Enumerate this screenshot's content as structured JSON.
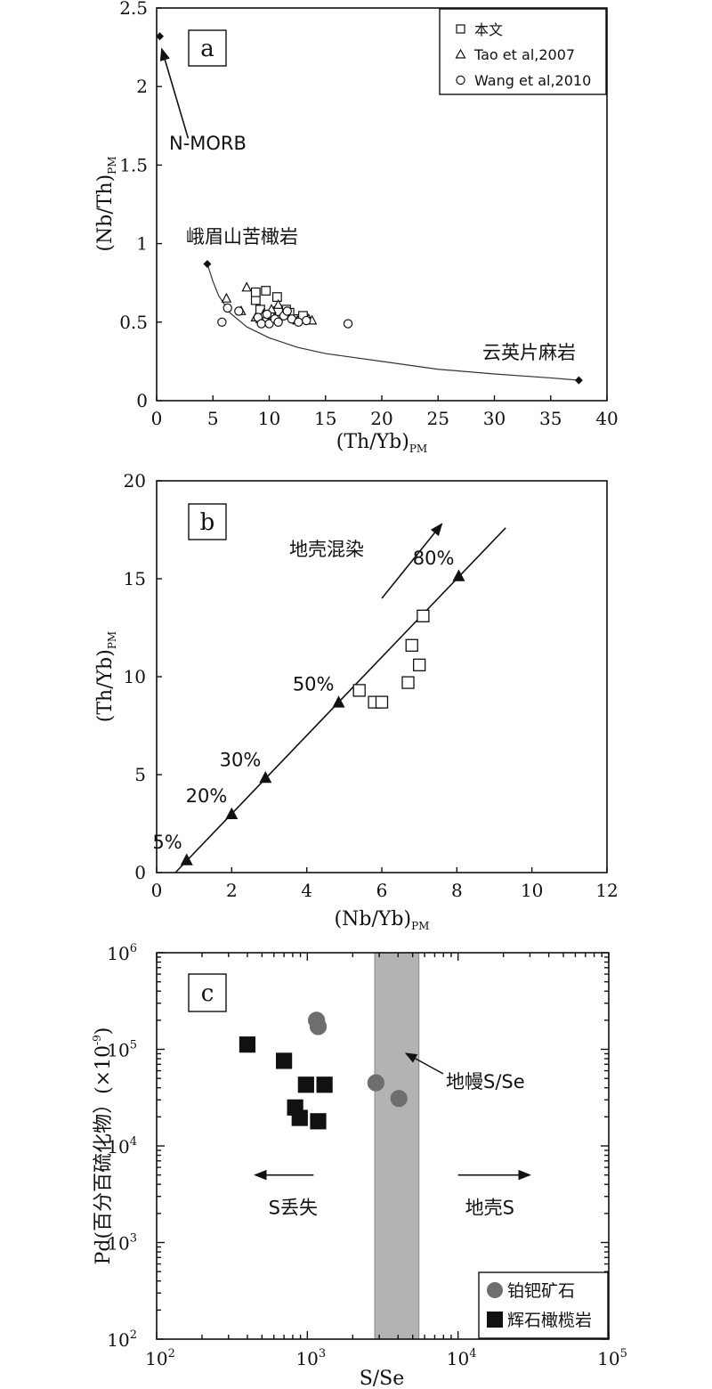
{
  "chart_data": [
    {
      "id": "a",
      "type": "scatter",
      "panel_label": "a",
      "xlabel": "(Th/Yb)",
      "xlabel_sub": "PM",
      "ylabel": "(Nb/Th)",
      "ylabel_sub": "PM",
      "xlim": [
        0,
        40
      ],
      "ylim": [
        0,
        2.5
      ],
      "xticks": [
        0,
        5,
        10,
        15,
        20,
        25,
        30,
        35,
        40
      ],
      "yticks": [
        0,
        0.5,
        1,
        1.5,
        2,
        2.5
      ],
      "ytick_labels": [
        "0",
        "0.5",
        "1",
        "1.5",
        "2",
        "2.5"
      ],
      "legend_position": "top-right",
      "legend": [
        {
          "marker": "square",
          "label": "本文"
        },
        {
          "marker": "triangle",
          "label": "Tao et al,2007"
        },
        {
          "marker": "circle",
          "label": "Wang et al,2010"
        }
      ],
      "series": [
        {
          "name": "本文",
          "marker": "square",
          "points": [
            [
              8.8,
              0.64
            ],
            [
              8.8,
              0.69
            ],
            [
              9.7,
              0.7
            ],
            [
              10.7,
              0.66
            ],
            [
              9.2,
              0.58
            ],
            [
              10.3,
              0.55
            ],
            [
              11.5,
              0.58
            ],
            [
              12.5,
              0.52
            ],
            [
              13.0,
              0.54
            ],
            [
              9.5,
              0.52
            ],
            [
              10.8,
              0.57
            ],
            [
              11.8,
              0.56
            ]
          ]
        },
        {
          "name": "Tao et al,2007",
          "marker": "triangle",
          "points": [
            [
              6.2,
              0.65
            ],
            [
              7.5,
              0.57
            ],
            [
              8.0,
              0.72
            ],
            [
              8.8,
              0.53
            ],
            [
              9.5,
              0.55
            ],
            [
              10.2,
              0.58
            ],
            [
              10.8,
              0.61
            ],
            [
              11.5,
              0.55
            ],
            [
              12.5,
              0.51
            ],
            [
              13.5,
              0.52
            ],
            [
              13.8,
              0.51
            ],
            [
              9.2,
              0.52
            ],
            [
              10.5,
              0.53
            ]
          ]
        },
        {
          "name": "Wang et al,2010",
          "marker": "circle",
          "points": [
            [
              5.8,
              0.5
            ],
            [
              6.3,
              0.59
            ],
            [
              7.3,
              0.57
            ],
            [
              9.0,
              0.53
            ],
            [
              9.3,
              0.49
            ],
            [
              9.8,
              0.55
            ],
            [
              10.0,
              0.49
            ],
            [
              10.5,
              0.52
            ],
            [
              10.8,
              0.5
            ],
            [
              11.3,
              0.54
            ],
            [
              11.6,
              0.57
            ],
            [
              12.0,
              0.52
            ],
            [
              12.6,
              0.5
            ],
            [
              13.3,
              0.51
            ],
            [
              17.0,
              0.49
            ]
          ]
        }
      ],
      "endmembers": [
        {
          "label": "N-MORB",
          "x": 0.28,
          "y": 2.32
        },
        {
          "label": "峨眉山苦橄岩",
          "x": 4.5,
          "y": 0.87
        },
        {
          "label": "云英片麻岩",
          "x": 37.5,
          "y": 0.13
        }
      ],
      "mixing_curve": [
        [
          4.5,
          0.87
        ],
        [
          5.0,
          0.76
        ],
        [
          5.5,
          0.67
        ],
        [
          6.5,
          0.56
        ],
        [
          8.0,
          0.47
        ],
        [
          10.0,
          0.4
        ],
        [
          12.5,
          0.34
        ],
        [
          15.0,
          0.3
        ],
        [
          20.0,
          0.25
        ],
        [
          25.0,
          0.2
        ],
        [
          30.0,
          0.17
        ],
        [
          35.0,
          0.145
        ],
        [
          37.5,
          0.13
        ]
      ],
      "arrow": {
        "from": [
          2.8,
          1.67
        ],
        "to": [
          0.45,
          2.24
        ]
      }
    },
    {
      "id": "b",
      "type": "scatter",
      "panel_label": "b",
      "xlabel": "(Nb/Yb)",
      "xlabel_sub": "PM",
      "ylabel": "(Th/Yb)",
      "ylabel_sub": "PM",
      "xlim": [
        0,
        12
      ],
      "ylim": [
        0,
        20
      ],
      "xticks": [
        0,
        2,
        4,
        6,
        8,
        10,
        12
      ],
      "yticks": [
        0,
        5,
        10,
        15,
        20
      ],
      "series": [
        {
          "name": "本文",
          "marker": "square",
          "points": [
            [
              5.4,
              9.3
            ],
            [
              5.8,
              8.7
            ],
            [
              6.0,
              8.7
            ],
            [
              6.7,
              9.7
            ],
            [
              6.8,
              11.6
            ],
            [
              7.0,
              10.6
            ],
            [
              7.1,
              13.1
            ]
          ]
        }
      ],
      "mixing_points": [
        {
          "label": "5%",
          "x": 0.8,
          "y": 0.6
        },
        {
          "label": "20%",
          "x": 2.0,
          "y": 2.95
        },
        {
          "label": "30%",
          "x": 2.9,
          "y": 4.8
        },
        {
          "label": "50%",
          "x": 4.85,
          "y": 8.65
        },
        {
          "label": "80%",
          "x": 8.05,
          "y": 15.1
        }
      ],
      "mixing_line": [
        [
          0.5,
          0
        ],
        [
          9.3,
          17.6
        ]
      ],
      "annotation": {
        "label": "地壳混染",
        "arrow_from": [
          6.0,
          14.0
        ],
        "arrow_to": [
          7.6,
          17.8
        ]
      }
    },
    {
      "id": "c",
      "type": "scatter",
      "panel_label": "c",
      "xlabel": "S/Se",
      "ylabel": "Pd(百分百硫化物）(×10",
      "ylabel_sup": "-9",
      "ylabel_tail": ")",
      "xscale": "log",
      "yscale": "log",
      "xlim": [
        100,
        100000
      ],
      "ylim": [
        100,
        1000000
      ],
      "xticks": [
        {
          "base": "10",
          "exp": "2",
          "value": 100
        },
        {
          "base": "10",
          "exp": "3",
          "value": 1000
        },
        {
          "base": "10",
          "exp": "4",
          "value": 10000
        },
        {
          "base": "10",
          "exp": "5",
          "value": 100000
        }
      ],
      "yticks": [
        {
          "base": "10",
          "exp": "2",
          "value": 100
        },
        {
          "base": "10",
          "exp": "3",
          "value": 1000
        },
        {
          "base": "10",
          "exp": "4",
          "value": 10000
        },
        {
          "base": "10",
          "exp": "5",
          "value": 100000
        },
        {
          "base": "10",
          "exp": "6",
          "value": 1000000
        }
      ],
      "legend_position": "bottom-right",
      "legend": [
        {
          "marker": "circle",
          "label": "铂钯矿石"
        },
        {
          "marker": "square",
          "label": "辉石橄榄岩"
        }
      ],
      "series": [
        {
          "name": "铂钯矿石",
          "marker": "circle",
          "points": [
            [
              1150,
              200000
            ],
            [
              1180,
              172000
            ],
            [
              2850,
              45000
            ],
            [
              4050,
              31000
            ]
          ]
        },
        {
          "name": "辉石橄榄岩",
          "marker": "square",
          "points": [
            [
              400,
              112000
            ],
            [
              700,
              76000
            ],
            [
              980,
              43000
            ],
            [
              1300,
              43000
            ],
            [
              830,
              25000
            ],
            [
              890,
              19500
            ],
            [
              1180,
              18000
            ]
          ]
        }
      ],
      "mantle_band": {
        "x_from": 2800,
        "x_to": 5500,
        "label": "地幔S/Se"
      },
      "arrows": [
        {
          "label": "S丢失",
          "from": 1100,
          "to": 450,
          "y": 5000
        },
        {
          "label": "地壳S",
          "from": 10000,
          "to": 30000,
          "y": 5000
        }
      ]
    }
  ],
  "colors": {
    "axis": "#111111",
    "band": "#b3b3b3",
    "ore_circle": "#6e6e6e",
    "peridotite_square": "#111111"
  }
}
